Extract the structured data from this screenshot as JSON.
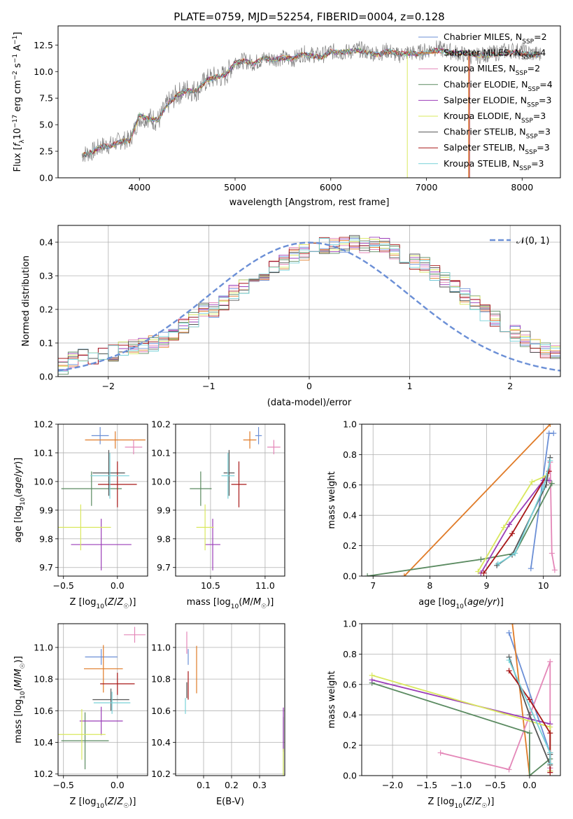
{
  "figure": {
    "title": "PLATE=0759, MJD=52254, FIBERID=0004, z=0.128"
  },
  "chart_data": [
    {
      "id": "spectrum",
      "type": "line",
      "title": "PLATE=0759, MJD=52254, FIBERID=0004, z=0.128",
      "xlabel": "wavelength [Angstrom, rest frame]",
      "ylabel": "Flux [f_λ 10^-17 erg cm^-2 s^-1 A^-1]",
      "xlim": [
        3150,
        8400
      ],
      "ylim": [
        0,
        14.3
      ],
      "xticks": [
        4000,
        5000,
        6000,
        7000,
        8000
      ],
      "yticks": [
        0.0,
        2.5,
        5.0,
        7.5,
        10.0,
        12.5
      ],
      "grid": false,
      "legend_position": "top-right",
      "data_series": {
        "name": "data",
        "color": "#808080",
        "x": [
          3400,
          3500,
          3600,
          3700,
          3800,
          3900,
          4000,
          4100,
          4200,
          4300,
          4400,
          4500,
          4600,
          4700,
          4800,
          4900,
          5000,
          5100,
          5200,
          5300,
          5400,
          5500,
          5600,
          5700,
          5800,
          5900,
          6000,
          6100,
          6200,
          6300,
          6400,
          6500,
          6600,
          6700,
          6800,
          6900,
          7000,
          7100,
          7200,
          7300,
          7400,
          7500,
          7600,
          7700,
          7800,
          7900,
          8000,
          8100,
          8200
        ],
        "y": [
          2.2,
          2.4,
          3.0,
          3.1,
          3.5,
          3.6,
          5.6,
          5.6,
          5.4,
          7.0,
          7.9,
          8.3,
          8.2,
          9.2,
          9.5,
          9.6,
          11.0,
          11.0,
          10.8,
          11.2,
          11.2,
          11.3,
          11.1,
          11.7,
          11.6,
          11.5,
          11.9,
          11.8,
          11.9,
          12.1,
          11.8,
          11.7,
          12.0,
          11.5,
          11.8,
          11.7,
          12.0,
          12.2,
          12.0,
          11.8,
          11.6,
          11.4,
          11.6,
          11.7,
          11.9,
          12.0,
          11.9,
          11.7,
          11.6
        ]
      },
      "model": {
        "x": [
          3400,
          3500,
          3600,
          3700,
          3800,
          3900,
          4000,
          4100,
          4200,
          4300,
          4400,
          4500,
          4600,
          4700,
          4800,
          4900,
          5000,
          5100,
          5200,
          5300,
          5400,
          5500,
          5600,
          5700,
          5800,
          5900,
          6000,
          6100,
          6200,
          6300,
          6400,
          6500,
          6600,
          6700,
          6800,
          6900,
          7000,
          7100,
          7200,
          7300,
          7400,
          7500,
          7600,
          7700,
          7800,
          7900,
          8000,
          8100,
          8200
        ],
        "y": [
          2.1,
          2.4,
          2.9,
          3.0,
          3.4,
          3.5,
          5.9,
          5.5,
          5.5,
          7.0,
          7.8,
          8.2,
          8.2,
          9.2,
          9.5,
          9.7,
          10.8,
          11.0,
          10.7,
          11.3,
          11.1,
          11.3,
          11.2,
          11.6,
          11.5,
          11.3,
          11.9,
          11.8,
          11.9,
          12.0,
          11.7,
          11.6,
          11.9,
          11.7,
          11.7,
          11.7,
          11.8,
          12.0,
          11.9,
          11.7,
          11.8,
          11.6,
          11.5,
          11.6,
          11.7,
          11.8,
          11.7,
          11.6,
          11.5
        ]
      }
    },
    {
      "id": "residuals",
      "type": "histogram",
      "xlabel": "(data-model)/error",
      "ylabel": "Normed distribution",
      "xlim": [
        -2.5,
        2.5
      ],
      "ylim": [
        0,
        0.45
      ],
      "xticks": [
        -2,
        -1,
        0,
        1,
        2
      ],
      "yticks": [
        0.0,
        0.1,
        0.2,
        0.3,
        0.4
      ],
      "grid": true,
      "legend_position": "top-right",
      "legend": [
        "𝒩(0, 1)"
      ],
      "reference_curve": {
        "name": "𝒩(0, 1)",
        "mean": 0,
        "sigma": 1,
        "color": "#6b8fd6",
        "style": "dashed"
      },
      "bin_width": 0.1,
      "bin_start": -2.5,
      "base_values": [
        0.03,
        0.05,
        0.06,
        0.06,
        0.06,
        0.07,
        0.08,
        0.09,
        0.09,
        0.1,
        0.11,
        0.13,
        0.15,
        0.17,
        0.2,
        0.2,
        0.22,
        0.25,
        0.27,
        0.3,
        0.3,
        0.32,
        0.34,
        0.36,
        0.37,
        0.38,
        0.39,
        0.39,
        0.39,
        0.4,
        0.39,
        0.39,
        0.39,
        0.37,
        0.36,
        0.34,
        0.33,
        0.31,
        0.29,
        0.27,
        0.24,
        0.22,
        0.19,
        0.17,
        0.15,
        0.13,
        0.11,
        0.09,
        0.08,
        0.07,
        0.05
      ]
    },
    {
      "id": "age-vs-Z",
      "type": "scatter",
      "xlabel": "Z [log10(Z/Z☉)]",
      "ylabel": "age  [log10(age/yr)]",
      "xlim": [
        -0.55,
        0.28
      ],
      "ylim": [
        9.67,
        10.2
      ],
      "xticks": [
        -0.5,
        0.0
      ],
      "yticks": [
        9.7,
        9.8,
        9.9,
        10.0,
        10.1,
        10.2
      ],
      "grid": true,
      "points": [
        {
          "x": -0.16,
          "y": 10.16,
          "xerr": 0.08,
          "yerr": 0.03,
          "color": "#6b8fd6"
        },
        {
          "x": -0.02,
          "y": 10.145,
          "xerr": 0.28,
          "yerr": 0.03,
          "color": "#e07b28"
        },
        {
          "x": 0.15,
          "y": 10.12,
          "xerr": 0.08,
          "yerr": 0.025,
          "color": "#e487b8"
        },
        {
          "x": -0.24,
          "y": 9.975,
          "xerr": 0.28,
          "yerr": 0.06,
          "color": "#5a8a60"
        },
        {
          "x": -0.15,
          "y": 9.78,
          "xerr": 0.28,
          "yerr": 0.09,
          "color": "#9b3db8"
        },
        {
          "x": -0.34,
          "y": 9.84,
          "xerr": 0.28,
          "yerr": 0.08,
          "color": "#d9e85e"
        },
        {
          "x": -0.08,
          "y": 10.03,
          "xerr": 0.15,
          "yerr": 0.08,
          "color": "#555555"
        },
        {
          "x": -0.0,
          "y": 9.99,
          "xerr": 0.18,
          "yerr": 0.08,
          "color": "#a81818"
        },
        {
          "x": -0.07,
          "y": 10.02,
          "xerr": 0.18,
          "yerr": 0.08,
          "color": "#77d1d8"
        }
      ]
    },
    {
      "id": "age-vs-mass",
      "type": "scatter",
      "xlabel": "mass [log10(M/M☉)]",
      "ylabel": "",
      "xlim": [
        10.18,
        11.18
      ],
      "ylim": [
        9.67,
        10.2
      ],
      "xticks": [
        10.5,
        11.0
      ],
      "yticks": [
        9.7,
        9.8,
        9.9,
        10.0,
        10.1,
        10.2
      ],
      "grid": true,
      "points": [
        {
          "x": 10.94,
          "y": 10.16,
          "xerr": 0.03,
          "yerr": 0.03,
          "color": "#6b8fd6"
        },
        {
          "x": 10.86,
          "y": 10.145,
          "xerr": 0.06,
          "yerr": 0.03,
          "color": "#e07b28"
        },
        {
          "x": 11.08,
          "y": 10.12,
          "xerr": 0.06,
          "yerr": 0.025,
          "color": "#e487b8"
        },
        {
          "x": 10.41,
          "y": 9.975,
          "xerr": 0.1,
          "yerr": 0.06,
          "color": "#5a8a60"
        },
        {
          "x": 10.52,
          "y": 9.78,
          "xerr": 0.07,
          "yerr": 0.09,
          "color": "#9b3db8"
        },
        {
          "x": 10.45,
          "y": 9.84,
          "xerr": 0.08,
          "yerr": 0.08,
          "color": "#d9e85e"
        },
        {
          "x": 10.67,
          "y": 10.03,
          "xerr": 0.05,
          "yerr": 0.08,
          "color": "#555555"
        },
        {
          "x": 10.76,
          "y": 9.99,
          "xerr": 0.07,
          "yerr": 0.08,
          "color": "#a81818"
        },
        {
          "x": 10.66,
          "y": 10.02,
          "xerr": 0.06,
          "yerr": 0.08,
          "color": "#77d1d8"
        }
      ]
    },
    {
      "id": "massweight-vs-age",
      "type": "line",
      "xlabel": "age  [log10(age/yr)]",
      "ylabel": "mass weight",
      "xlim": [
        6.8,
        10.3
      ],
      "ylim": [
        0,
        1.0
      ],
      "xticks": [
        7,
        8,
        9,
        10
      ],
      "yticks": [
        0.0,
        0.2,
        0.4,
        0.6,
        0.8,
        1.0
      ],
      "grid": true,
      "series": [
        {
          "color": "#6b8fd6",
          "x": [
            9.78,
            10.1,
            10.18
          ],
          "y": [
            0.05,
            0.94,
            0.94
          ]
        },
        {
          "color": "#e07b28",
          "x": [
            7.55,
            10.12
          ],
          "y": [
            0.0,
            1.0
          ]
        },
        {
          "color": "#e487b8",
          "x": [
            10.12,
            10.15,
            10.2
          ],
          "y": [
            0.75,
            0.15,
            0.04
          ]
        },
        {
          "color": "#5a8a60",
          "x": [
            6.9,
            8.9,
            9.5,
            10.15
          ],
          "y": [
            0.0,
            0.11,
            0.15,
            0.61
          ]
        },
        {
          "color": "#9b3db8",
          "x": [
            8.9,
            9.4,
            10.0,
            10.1
          ],
          "y": [
            0.02,
            0.34,
            0.63,
            0.63
          ]
        },
        {
          "color": "#d9e85e",
          "x": [
            8.85,
            9.3,
            9.8,
            10.05
          ],
          "y": [
            0.03,
            0.32,
            0.62,
            0.66
          ]
        },
        {
          "color": "#555555",
          "x": [
            9.18,
            9.45,
            10.05,
            10.12
          ],
          "y": [
            0.07,
            0.14,
            0.6,
            0.78
          ]
        },
        {
          "color": "#a81818",
          "x": [
            8.95,
            9.45,
            10.1
          ],
          "y": [
            0.02,
            0.28,
            0.69
          ]
        },
        {
          "color": "#77d1d8",
          "x": [
            9.2,
            9.5,
            10.0,
            10.12
          ],
          "y": [
            0.08,
            0.15,
            0.58,
            0.76
          ]
        }
      ]
    },
    {
      "id": "mass-vs-Z",
      "type": "scatter",
      "xlabel": "Z [log10(Z/Z☉)]",
      "ylabel": "mass [log10(M/M☉)]",
      "xlim": [
        -0.55,
        0.28
      ],
      "ylim": [
        10.19,
        11.15
      ],
      "xticks": [
        -0.5,
        0.0
      ],
      "yticks": [
        10.2,
        10.4,
        10.6,
        10.8,
        11.0
      ],
      "grid": true,
      "points": [
        {
          "x": -0.15,
          "y": 10.94,
          "xerr": 0.15,
          "yerr": 0.05,
          "color": "#6b8fd6"
        },
        {
          "x": -0.13,
          "y": 10.865,
          "xerr": 0.18,
          "yerr": 0.15,
          "color": "#e07b28"
        },
        {
          "x": 0.16,
          "y": 11.08,
          "xerr": 0.1,
          "yerr": 0.05,
          "color": "#e487b8"
        },
        {
          "x": -0.3,
          "y": 10.41,
          "xerr": 0.22,
          "yerr": 0.18,
          "color": "#5a8a60"
        },
        {
          "x": -0.15,
          "y": 10.535,
          "xerr": 0.2,
          "yerr": 0.09,
          "color": "#9b3db8"
        },
        {
          "x": -0.33,
          "y": 10.45,
          "xerr": 0.22,
          "yerr": 0.16,
          "color": "#d9e85e"
        },
        {
          "x": -0.06,
          "y": 10.67,
          "xerr": 0.17,
          "yerr": 0.07,
          "color": "#555555"
        },
        {
          "x": 0.0,
          "y": 10.77,
          "xerr": 0.16,
          "yerr": 0.07,
          "color": "#a81818"
        },
        {
          "x": -0.05,
          "y": 10.65,
          "xerr": 0.17,
          "yerr": 0.07,
          "color": "#77d1d8"
        }
      ]
    },
    {
      "id": "mass-vs-EBV",
      "type": "scatter",
      "xlabel": "E(B-V)",
      "ylabel": "",
      "xlim": [
        0.0,
        0.39
      ],
      "ylim": [
        10.19,
        11.15
      ],
      "xticks": [
        0.1,
        0.2,
        0.3
      ],
      "yticks": [
        10.2,
        10.4,
        10.6,
        10.8,
        11.0
      ],
      "grid": true,
      "points": [
        {
          "x": 0.045,
          "y": 10.94,
          "xerr": 0.0,
          "yerr": 0.05,
          "color": "#6b8fd6"
        },
        {
          "x": 0.075,
          "y": 10.86,
          "xerr": 0.0,
          "yerr": 0.15,
          "color": "#e07b28"
        },
        {
          "x": 0.04,
          "y": 11.03,
          "xerr": 0.0,
          "yerr": 0.07,
          "color": "#e487b8"
        },
        {
          "x": 0.385,
          "y": 10.38,
          "xerr": 0.0,
          "yerr": 0.18,
          "color": "#5a8a60"
        },
        {
          "x": 0.385,
          "y": 10.48,
          "xerr": 0.0,
          "yerr": 0.14,
          "color": "#9b3db8"
        },
        {
          "x": 0.385,
          "y": 10.27,
          "xerr": 0.0,
          "yerr": 0.09,
          "color": "#d9e85e"
        },
        {
          "x": 0.04,
          "y": 10.73,
          "xerr": 0.0,
          "yerr": 0.05,
          "color": "#555555"
        },
        {
          "x": 0.045,
          "y": 10.76,
          "xerr": 0.0,
          "yerr": 0.09,
          "color": "#a81818"
        },
        {
          "x": 0.035,
          "y": 10.63,
          "xerr": 0.0,
          "yerr": 0.05,
          "color": "#77d1d8"
        }
      ]
    },
    {
      "id": "massweight-vs-Z",
      "type": "line",
      "xlabel": "Z [log10(Z/Z☉)]",
      "ylabel": "mass weight",
      "xlim": [
        -2.45,
        0.45
      ],
      "ylim": [
        0,
        1.0
      ],
      "xticks": [
        -2.0,
        -1.5,
        -1.0,
        -0.5,
        0.0
      ],
      "yticks": [
        0.0,
        0.2,
        0.4,
        0.6,
        0.8,
        1.0
      ],
      "grid": true,
      "series": [
        {
          "color": "#6b8fd6",
          "x": [
            -0.3,
            0.3,
            0.3
          ],
          "y": [
            0.94,
            0.15,
            0.05
          ]
        },
        {
          "color": "#e07b28",
          "x": [
            -0.25,
            0.0
          ],
          "y": [
            1.0,
            0.0
          ]
        },
        {
          "color": "#e487b8",
          "x": [
            -1.3,
            -0.3,
            0.3,
            0.3
          ],
          "y": [
            0.15,
            0.04,
            0.75,
            0.05
          ]
        },
        {
          "color": "#5a8a60",
          "x": [
            -2.3,
            0.0,
            0.0,
            0.3,
            0.3
          ],
          "y": [
            0.61,
            0.28,
            0.0,
            0.11,
            0.15
          ]
        },
        {
          "color": "#9b3db8",
          "x": [
            -2.3,
            0.3,
            0.3
          ],
          "y": [
            0.63,
            0.34,
            0.03
          ]
        },
        {
          "color": "#d9e85e",
          "x": [
            -2.3,
            0.3,
            0.3
          ],
          "y": [
            0.66,
            0.32,
            0.03
          ]
        },
        {
          "color": "#555555",
          "x": [
            -0.3,
            0.0,
            0.3,
            0.3
          ],
          "y": [
            0.78,
            0.4,
            0.07,
            0.14
          ]
        },
        {
          "color": "#a81818",
          "x": [
            -0.3,
            0.0,
            0.3,
            0.3
          ],
          "y": [
            0.69,
            0.5,
            0.28,
            0.02
          ]
        },
        {
          "color": "#77d1d8",
          "x": [
            -0.3,
            0.3,
            0.3
          ],
          "y": [
            0.76,
            0.15,
            0.08
          ]
        }
      ]
    }
  ],
  "legend": [
    {
      "label": "Chabrier MILES, N",
      "sub": "SSP",
      "count": "=2",
      "color": "#6b8fd6"
    },
    {
      "label": "Salpeter MILES, N",
      "sub": "SSP",
      "count": "=4",
      "color": "#e07b28"
    },
    {
      "label": "Kroupa MILES, N",
      "sub": "SSP",
      "count": "=2",
      "color": "#e487b8"
    },
    {
      "label": "Chabrier ELODIE, N",
      "sub": "SSP",
      "count": "=4",
      "color": "#5a8a60"
    },
    {
      "label": "Salpeter ELODIE, N",
      "sub": "SSP",
      "count": "=3",
      "color": "#9b3db8"
    },
    {
      "label": "Kroupa ELODIE, N",
      "sub": "SSP",
      "count": "=3",
      "color": "#d9e85e"
    },
    {
      "label": "Chabrier STELIB, N",
      "sub": "SSP",
      "count": "=3",
      "color": "#555555"
    },
    {
      "label": "Salpeter STELIB, N",
      "sub": "SSP",
      "count": "=3",
      "color": "#a81818"
    },
    {
      "label": "Kroupa STELIB, N",
      "sub": "SSP",
      "count": "=3",
      "color": "#77d1d8"
    }
  ]
}
